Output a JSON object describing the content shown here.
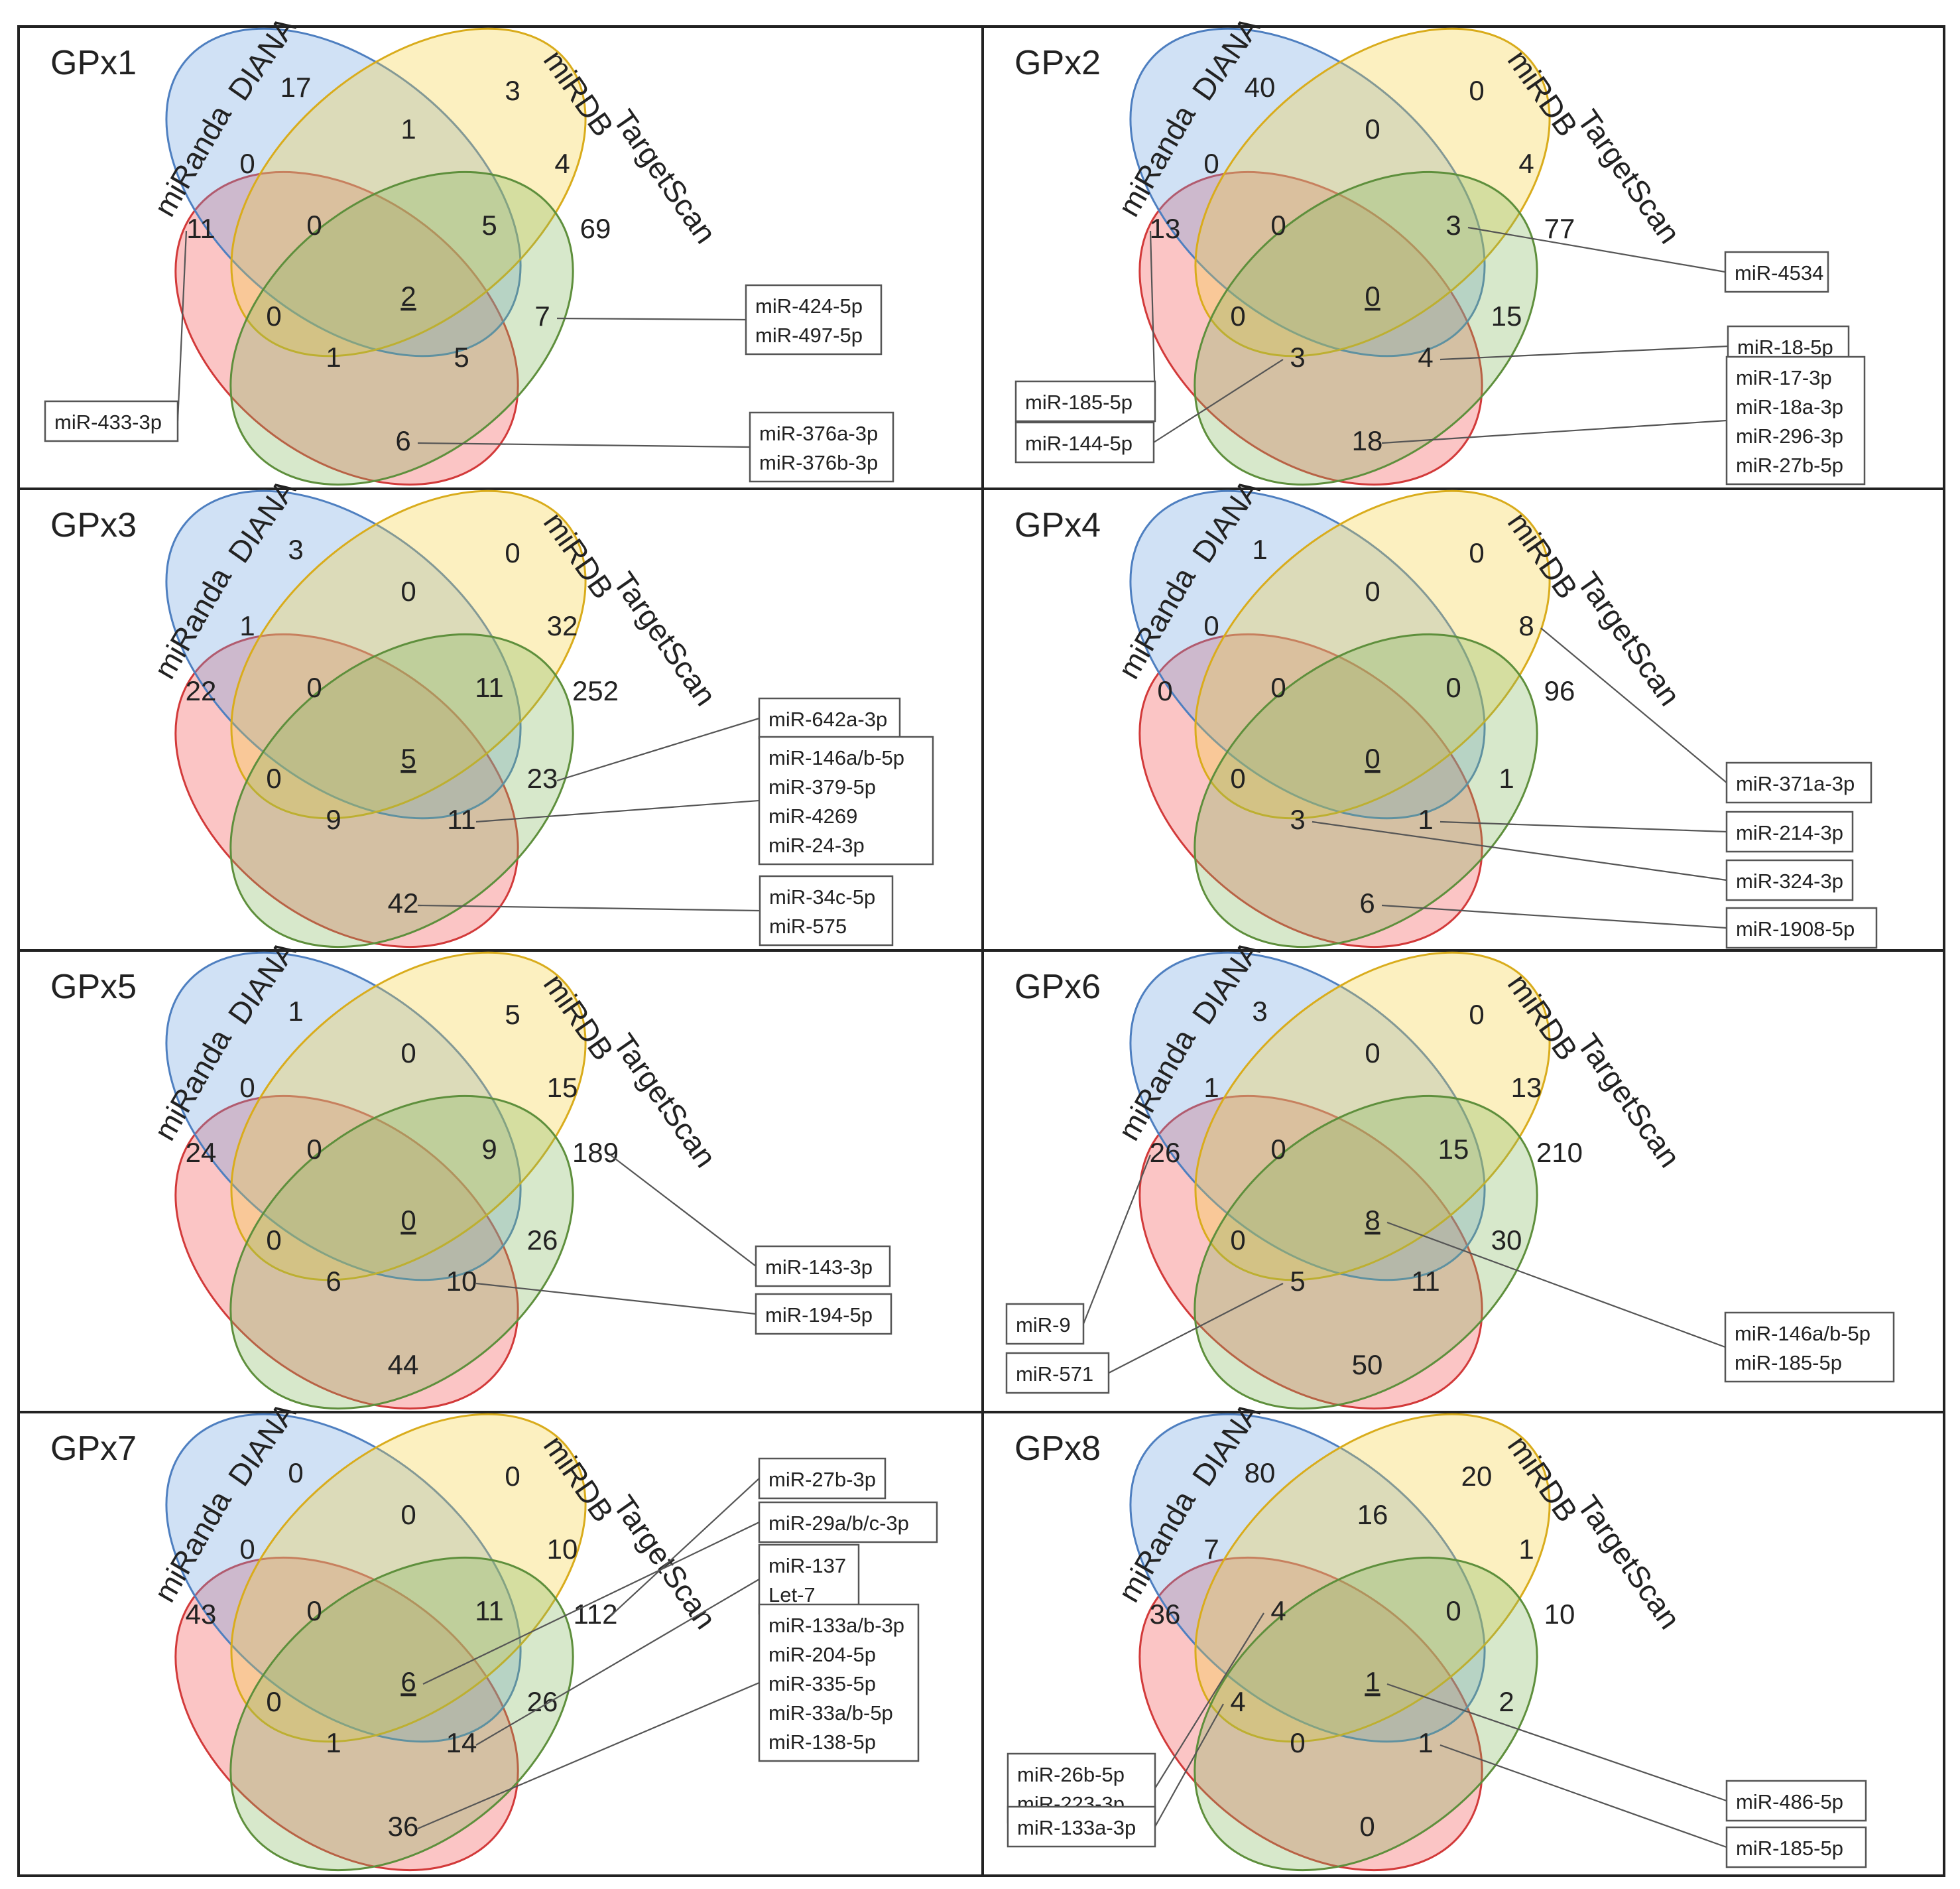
{
  "figure": {
    "set_names": [
      "miRanda",
      "DIANA",
      "miRDB",
      "TargetScan"
    ],
    "colors": {
      "miRanda": "#f24a4a",
      "DIANA": "#6ea3e0",
      "miRDB": "#f5cf3c",
      "TargetScan": "#84b85c",
      "miRanda_stroke": "#d23a3a",
      "DIANA_stroke": "#4e7fc0",
      "miRDB_stroke": "#d9ac1c",
      "TargetScan_stroke": "#5e8f3c",
      "frame": "#222222",
      "leader": "#555555"
    },
    "panels": [
      {
        "title": "GPx1",
        "regions": {
          "r_only": "11",
          "d_only": "17",
          "m_only": "3",
          "t_only": "69",
          "rd": "0",
          "rm": "0",
          "dm": "1",
          "mt": "4",
          "rt": "6",
          "dt": "7",
          "rdm": "0",
          "rmt": "1",
          "dmt": "5",
          "rdt": "5",
          "all": "2"
        },
        "underline_all": true,
        "callouts": [
          {
            "region": "r_only",
            "lines": [
              "miR-433-3p"
            ]
          },
          {
            "region": "dt",
            "lines": [
              "miR-424-5p",
              "miR-497-5p"
            ]
          },
          {
            "region": "rt",
            "lines": [
              "miR-376a-3p",
              "miR-376b-3p"
            ]
          }
        ]
      },
      {
        "title": "GPx2",
        "regions": {
          "r_only": "13",
          "d_only": "40",
          "m_only": "0",
          "t_only": "77",
          "rd": "0",
          "rm": "0",
          "dm": "0",
          "mt": "4",
          "rt": "18",
          "dt": "15",
          "rdm": "0",
          "rmt": "3",
          "dmt": "3",
          "rdt": "4",
          "all": "0"
        },
        "underline_all": true,
        "callouts": [
          {
            "region": "dmt",
            "lines": [
              "miR-4534"
            ]
          },
          {
            "region": "rdt",
            "lines": [
              "miR-18-5p"
            ]
          },
          {
            "region": "rt",
            "lines": [
              "miR-17-3p",
              "miR-18a-3p",
              "miR-296-3p",
              "miR-27b-5p"
            ]
          },
          {
            "region": "r_only",
            "lines": [
              "miR-185-5p"
            ]
          },
          {
            "region": "rmt",
            "lines": [
              "miR-144-5p"
            ]
          }
        ]
      },
      {
        "title": "GPx3",
        "regions": {
          "r_only": "22",
          "d_only": "3",
          "m_only": "0",
          "t_only": "252",
          "rd": "1",
          "rm": "0",
          "dm": "0",
          "mt": "32",
          "rt": "42",
          "dt": "23",
          "rdm": "0",
          "rmt": "9",
          "dmt": "11",
          "rdt": "11",
          "all": "5"
        },
        "underline_all": true,
        "callouts": [
          {
            "region": "dt",
            "lines": [
              "miR-642a-3p"
            ]
          },
          {
            "region": "rdt",
            "lines": [
              "miR-146a/b-5p",
              "miR-379-5p",
              "miR-4269",
              "miR-24-3p"
            ]
          },
          {
            "region": "rt",
            "lines": [
              "miR-34c-5p",
              "miR-575"
            ]
          }
        ]
      },
      {
        "title": "GPx4",
        "regions": {
          "r_only": "0",
          "d_only": "1",
          "m_only": "0",
          "t_only": "96",
          "rd": "0",
          "rm": "0",
          "dm": "0",
          "mt": "8",
          "rt": "6",
          "dt": "1",
          "rdm": "0",
          "rmt": "3",
          "dmt": "0",
          "rdt": "1",
          "all": "0"
        },
        "underline_all": true,
        "callouts": [
          {
            "region": "mt",
            "lines": [
              "miR-371a-3p"
            ]
          },
          {
            "region": "rdt",
            "lines": [
              "miR-214-3p"
            ]
          },
          {
            "region": "rmt",
            "lines": [
              "miR-324-3p"
            ]
          },
          {
            "region": "rt",
            "lines": [
              "miR-1908-5p"
            ]
          }
        ]
      },
      {
        "title": "GPx5",
        "regions": {
          "r_only": "24",
          "d_only": "1",
          "m_only": "5",
          "t_only": "189",
          "rd": "0",
          "rm": "0",
          "dm": "0",
          "mt": "15",
          "rt": "44",
          "dt": "26",
          "rdm": "0",
          "rmt": "6",
          "dmt": "9",
          "rdt": "10",
          "all": "0"
        },
        "underline_all": true,
        "callouts": [
          {
            "region": "t_only",
            "lines": [
              "miR-143-3p"
            ]
          },
          {
            "region": "rdt",
            "lines": [
              "miR-194-5p"
            ]
          }
        ]
      },
      {
        "title": "GPx6",
        "regions": {
          "r_only": "26",
          "d_only": "3",
          "m_only": "0",
          "t_only": "210",
          "rd": "1",
          "rm": "0",
          "dm": "0",
          "mt": "13",
          "rt": "50",
          "dt": "30",
          "rdm": "0",
          "rmt": "5",
          "dmt": "15",
          "rdt": "11",
          "all": "8"
        },
        "underline_all": true,
        "callouts": [
          {
            "region": "r_only",
            "lines": [
              "miR-9"
            ]
          },
          {
            "region": "rmt",
            "lines": [
              "miR-571"
            ]
          },
          {
            "region": "all",
            "lines": [
              "miR-146a/b-5p",
              "miR-185-5p"
            ]
          }
        ]
      },
      {
        "title": "GPx7",
        "regions": {
          "r_only": "43",
          "d_only": "0",
          "m_only": "0",
          "t_only": "112",
          "rd": "0",
          "rm": "0",
          "dm": "0",
          "mt": "10",
          "rt": "36",
          "dt": "26",
          "rdm": "0",
          "rmt": "1",
          "dmt": "11",
          "rdt": "14",
          "all": "6"
        },
        "underline_all": true,
        "callouts": [
          {
            "region": "t_only",
            "lines": [
              "miR-27b-3p"
            ]
          },
          {
            "region": "all",
            "lines": [
              "miR-29a/b/c-3p"
            ]
          },
          {
            "region": "rdt",
            "lines": [
              "miR-137",
              "Let-7"
            ]
          },
          {
            "region": "rt",
            "lines": [
              "miR-133a/b-3p",
              "miR-204-5p",
              "miR-335-5p",
              "miR-33a/b-5p",
              "miR-138-5p"
            ]
          }
        ]
      },
      {
        "title": "GPx8",
        "regions": {
          "r_only": "36",
          "d_only": "80",
          "m_only": "20",
          "t_only": "10",
          "rd": "7",
          "rm": "4",
          "dm": "16",
          "mt": "1",
          "rt": "0",
          "dt": "2",
          "rdm": "4",
          "rmt": "0",
          "dmt": "0",
          "rdt": "1",
          "all": "1"
        },
        "underline_all": true,
        "callouts": [
          {
            "region": "rdm",
            "lines": [
              "miR-26b-5p",
              "miR-223-3p"
            ]
          },
          {
            "region": "rm",
            "lines": [
              "miR-133a-3p"
            ]
          },
          {
            "region": "all",
            "lines": [
              "miR-486-5p"
            ]
          },
          {
            "region": "rdt",
            "lines": [
              "miR-185-5p"
            ]
          }
        ]
      }
    ]
  }
}
